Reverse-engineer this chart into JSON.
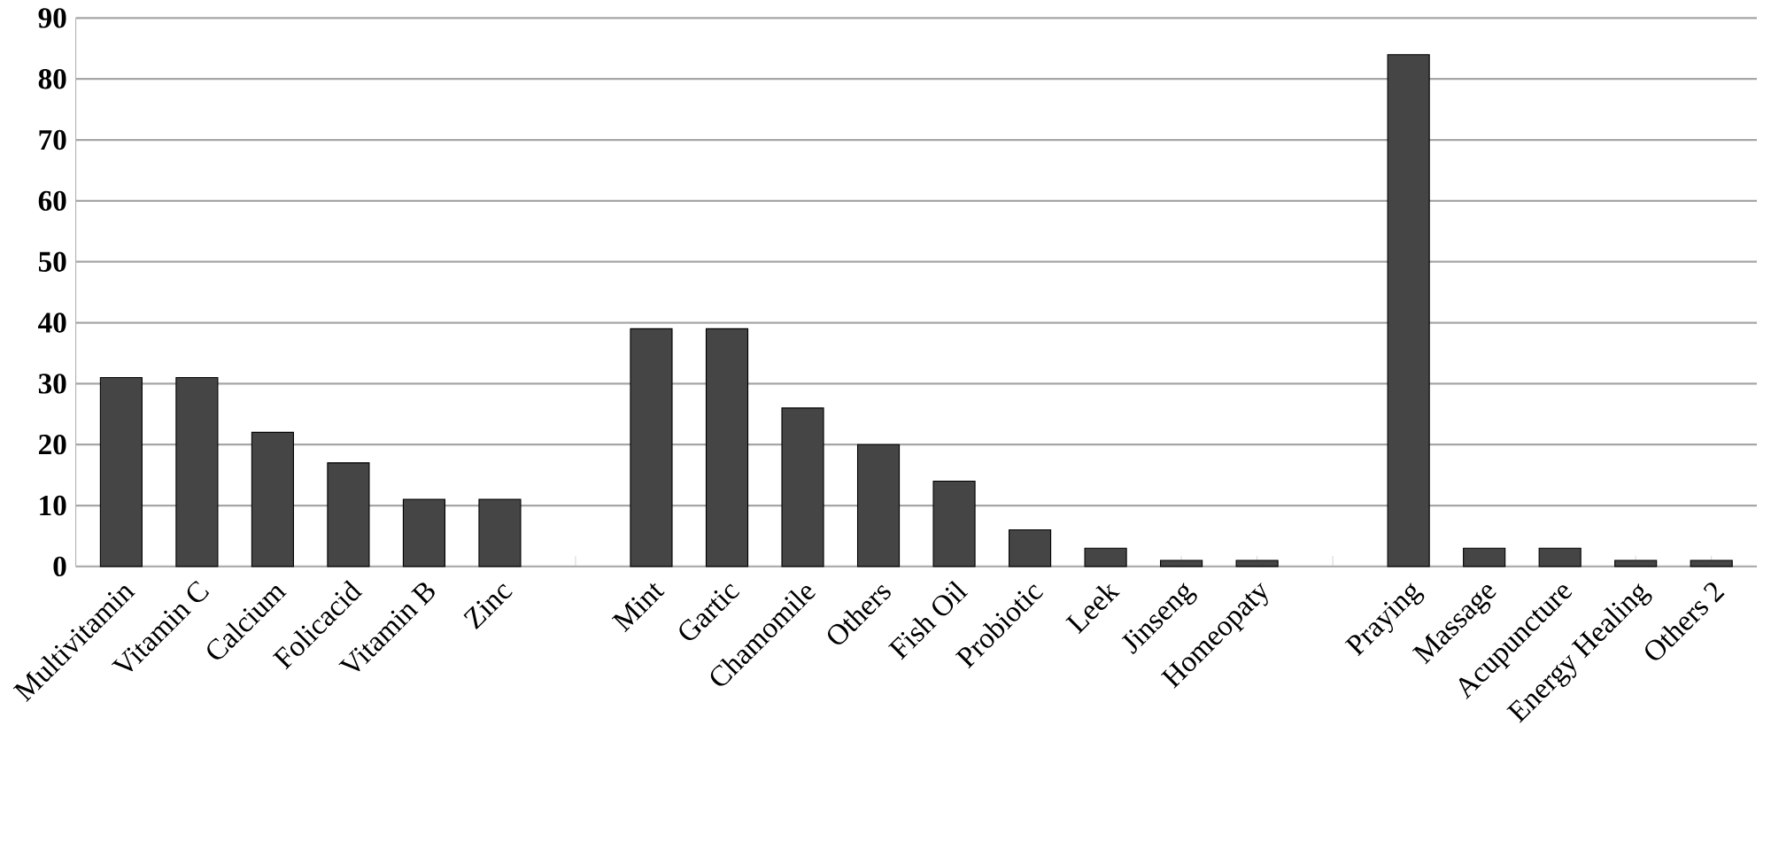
{
  "chart_data": {
    "type": "bar",
    "categories": [
      "Multivitamin",
      "Vitamin C",
      "Calcium",
      "Folicacid",
      "Vitamin B",
      "Zinc",
      null,
      "Mint",
      "Gartic",
      "Chamomile",
      "Others",
      "Fish Oil",
      "Probiotic",
      "Leek",
      "Jinseng",
      "Homeopaty",
      null,
      "Praying",
      "Massage",
      "Acupuncture",
      "Energy Healing",
      "Others 2"
    ],
    "values": [
      31,
      31,
      22,
      17,
      11,
      11,
      null,
      39,
      39,
      26,
      20,
      14,
      6,
      3,
      1,
      1,
      null,
      84,
      3,
      3,
      1,
      1
    ],
    "color": "#454545",
    "ylim": [
      0,
      90
    ],
    "yticks": [
      0,
      10,
      20,
      30,
      40,
      50,
      60,
      70,
      80,
      90
    ],
    "grid": "y"
  }
}
